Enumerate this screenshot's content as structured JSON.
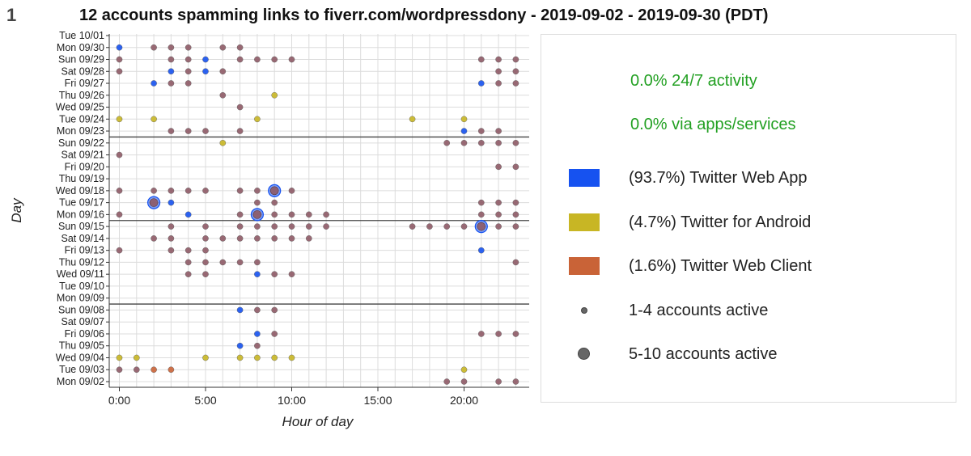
{
  "figure_number": "1",
  "legend": {
    "stats": [
      "0.0% 24/7 activity",
      "0.0% via apps/services"
    ],
    "sources": [
      {
        "label": "(93.7%) Twitter Web App",
        "color": "#1652f0"
      },
      {
        "label": "(4.7%) Twitter for Android",
        "color": "#c8b624"
      },
      {
        "label": "(1.6%) Twitter Web Client",
        "color": "#c96337"
      }
    ],
    "sizes": [
      {
        "label": "1-4 accounts active"
      },
      {
        "label": "5-10 accounts active"
      }
    ]
  },
  "chart_data": {
    "type": "scatter",
    "title": "12 accounts spamming links to fiverr.com/wordpressdony - 2019-09-02 - 2019-09-30 (PDT)",
    "xlabel": "Hour of day",
    "ylabel": "Day",
    "xlim": [
      -0.6,
      23.6
    ],
    "xticks": [
      0,
      5,
      10,
      15,
      20
    ],
    "xtick_labels": [
      "0:00",
      "5:00",
      "10:00",
      "15:00",
      "20:00"
    ],
    "days": [
      "Mon 09/02",
      "Tue 09/03",
      "Wed 09/04",
      "Thu 09/05",
      "Fri 09/06",
      "Sat 09/07",
      "Sun 09/08",
      "Mon 09/09",
      "Tue 09/10",
      "Wed 09/11",
      "Thu 09/12",
      "Fri 09/13",
      "Sat 09/14",
      "Sun 09/15",
      "Mon 09/16",
      "Tue 09/17",
      "Wed 09/18",
      "Thu 09/19",
      "Fri 09/20",
      "Sat 09/21",
      "Sun 09/22",
      "Mon 09/23",
      "Tue 09/24",
      "Wed 09/25",
      "Thu 09/26",
      "Fri 09/27",
      "Sat 09/28",
      "Sun 09/29",
      "Mon 09/30",
      "Tue 10/01"
    ],
    "week_separators_after": [
      "Sun 09/08",
      "Sun 09/15",
      "Sun 09/22"
    ],
    "colors": {
      "web_app": "#1652f0",
      "android": "#c8b624",
      "web_client": "#c96337",
      "mixed": "#8e5a66"
    },
    "points": [
      {
        "day": "Mon 09/30",
        "hours": [
          [
            0,
            "web_app",
            "s"
          ],
          [
            2,
            "mixed",
            "s"
          ],
          [
            3,
            "mixed",
            "s"
          ],
          [
            4,
            "mixed",
            "s"
          ],
          [
            6,
            "mixed",
            "s"
          ],
          [
            7,
            "mixed",
            "s"
          ]
        ]
      },
      {
        "day": "Sun 09/29",
        "hours": [
          [
            0,
            "mixed",
            "s"
          ],
          [
            3,
            "mixed",
            "s"
          ],
          [
            4,
            "mixed",
            "s"
          ],
          [
            5,
            "web_app",
            "s"
          ],
          [
            7,
            "mixed",
            "s"
          ],
          [
            8,
            "mixed",
            "s"
          ],
          [
            9,
            "mixed",
            "s"
          ],
          [
            10,
            "mixed",
            "s"
          ],
          [
            21,
            "mixed",
            "s"
          ],
          [
            22,
            "mixed",
            "s"
          ],
          [
            23,
            "mixed",
            "s"
          ]
        ]
      },
      {
        "day": "Sat 09/28",
        "hours": [
          [
            0,
            "mixed",
            "s"
          ],
          [
            3,
            "web_app",
            "s"
          ],
          [
            4,
            "mixed",
            "s"
          ],
          [
            5,
            "web_app",
            "s"
          ],
          [
            6,
            "mixed",
            "s"
          ],
          [
            22,
            "mixed",
            "s"
          ],
          [
            23,
            "mixed",
            "s"
          ]
        ]
      },
      {
        "day": "Fri 09/27",
        "hours": [
          [
            2,
            "web_app",
            "s"
          ],
          [
            3,
            "mixed",
            "s"
          ],
          [
            4,
            "mixed",
            "s"
          ],
          [
            21,
            "web_app",
            "s"
          ],
          [
            22,
            "mixed",
            "s"
          ],
          [
            23,
            "mixed",
            "s"
          ]
        ]
      },
      {
        "day": "Thu 09/26",
        "hours": [
          [
            6,
            "mixed",
            "s"
          ],
          [
            9,
            "android",
            "s"
          ]
        ]
      },
      {
        "day": "Wed 09/25",
        "hours": [
          [
            7,
            "mixed",
            "s"
          ]
        ]
      },
      {
        "day": "Tue 09/24",
        "hours": [
          [
            0,
            "android",
            "s"
          ],
          [
            2,
            "android",
            "s"
          ],
          [
            8,
            "android",
            "s"
          ],
          [
            17,
            "android",
            "s"
          ],
          [
            20,
            "android",
            "s"
          ]
        ]
      },
      {
        "day": "Mon 09/23",
        "hours": [
          [
            3,
            "mixed",
            "s"
          ],
          [
            4,
            "mixed",
            "s"
          ],
          [
            5,
            "mixed",
            "s"
          ],
          [
            7,
            "mixed",
            "s"
          ],
          [
            20,
            "web_app",
            "s"
          ],
          [
            21,
            "mixed",
            "s"
          ],
          [
            22,
            "mixed",
            "s"
          ]
        ]
      },
      {
        "day": "Sun 09/22",
        "hours": [
          [
            6,
            "android",
            "s"
          ],
          [
            19,
            "mixed",
            "s"
          ],
          [
            20,
            "mixed",
            "s"
          ],
          [
            21,
            "mixed",
            "s"
          ],
          [
            22,
            "mixed",
            "s"
          ],
          [
            23,
            "mixed",
            "s"
          ]
        ]
      },
      {
        "day": "Sat 09/21",
        "hours": [
          [
            0,
            "mixed",
            "s"
          ]
        ]
      },
      {
        "day": "Fri 09/20",
        "hours": [
          [
            22,
            "mixed",
            "s"
          ],
          [
            23,
            "mixed",
            "s"
          ]
        ]
      },
      {
        "day": "Wed 09/18",
        "hours": [
          [
            0,
            "mixed",
            "s"
          ],
          [
            2,
            "mixed",
            "s"
          ],
          [
            3,
            "mixed",
            "s"
          ],
          [
            4,
            "mixed",
            "s"
          ],
          [
            5,
            "mixed",
            "s"
          ],
          [
            7,
            "mixed",
            "s"
          ],
          [
            8,
            "mixed",
            "s"
          ],
          [
            9,
            "mixed",
            "l"
          ],
          [
            10,
            "mixed",
            "s"
          ]
        ]
      },
      {
        "day": "Tue 09/17",
        "hours": [
          [
            2,
            "mixed",
            "l"
          ],
          [
            3,
            "web_app",
            "s"
          ],
          [
            8,
            "mixed",
            "s"
          ],
          [
            9,
            "mixed",
            "s"
          ],
          [
            21,
            "mixed",
            "s"
          ],
          [
            22,
            "mixed",
            "s"
          ],
          [
            23,
            "mixed",
            "s"
          ]
        ]
      },
      {
        "day": "Mon 09/16",
        "hours": [
          [
            0,
            "mixed",
            "s"
          ],
          [
            4,
            "web_app",
            "s"
          ],
          [
            7,
            "mixed",
            "s"
          ],
          [
            8,
            "mixed",
            "l"
          ],
          [
            9,
            "mixed",
            "s"
          ],
          [
            10,
            "mixed",
            "s"
          ],
          [
            11,
            "mixed",
            "s"
          ],
          [
            12,
            "mixed",
            "s"
          ],
          [
            21,
            "mixed",
            "s"
          ],
          [
            22,
            "mixed",
            "s"
          ],
          [
            23,
            "mixed",
            "s"
          ]
        ]
      },
      {
        "day": "Sun 09/15",
        "hours": [
          [
            3,
            "mixed",
            "s"
          ],
          [
            5,
            "mixed",
            "s"
          ],
          [
            7,
            "mixed",
            "s"
          ],
          [
            8,
            "mixed",
            "s"
          ],
          [
            9,
            "mixed",
            "s"
          ],
          [
            10,
            "mixed",
            "s"
          ],
          [
            11,
            "mixed",
            "s"
          ],
          [
            12,
            "mixed",
            "s"
          ],
          [
            17,
            "mixed",
            "s"
          ],
          [
            18,
            "mixed",
            "s"
          ],
          [
            19,
            "mixed",
            "s"
          ],
          [
            20,
            "mixed",
            "s"
          ],
          [
            21,
            "mixed",
            "l"
          ],
          [
            22,
            "mixed",
            "s"
          ],
          [
            23,
            "mixed",
            "s"
          ]
        ]
      },
      {
        "day": "Sat 09/14",
        "hours": [
          [
            2,
            "mixed",
            "s"
          ],
          [
            3,
            "mixed",
            "s"
          ],
          [
            5,
            "mixed",
            "s"
          ],
          [
            6,
            "mixed",
            "s"
          ],
          [
            7,
            "mixed",
            "s"
          ],
          [
            8,
            "mixed",
            "s"
          ],
          [
            9,
            "mixed",
            "s"
          ],
          [
            10,
            "mixed",
            "s"
          ],
          [
            11,
            "mixed",
            "s"
          ]
        ]
      },
      {
        "day": "Fri 09/13",
        "hours": [
          [
            0,
            "mixed",
            "s"
          ],
          [
            3,
            "mixed",
            "s"
          ],
          [
            4,
            "mixed",
            "s"
          ],
          [
            5,
            "mixed",
            "s"
          ],
          [
            21,
            "web_app",
            "s"
          ]
        ]
      },
      {
        "day": "Thu 09/12",
        "hours": [
          [
            4,
            "mixed",
            "s"
          ],
          [
            5,
            "mixed",
            "s"
          ],
          [
            6,
            "mixed",
            "s"
          ],
          [
            7,
            "mixed",
            "s"
          ],
          [
            8,
            "mixed",
            "s"
          ],
          [
            23,
            "mixed",
            "s"
          ]
        ]
      },
      {
        "day": "Wed 09/11",
        "hours": [
          [
            4,
            "mixed",
            "s"
          ],
          [
            5,
            "mixed",
            "s"
          ],
          [
            8,
            "web_app",
            "s"
          ],
          [
            9,
            "mixed",
            "s"
          ],
          [
            10,
            "mixed",
            "s"
          ]
        ]
      },
      {
        "day": "Sun 09/08",
        "hours": [
          [
            7,
            "web_app",
            "s"
          ],
          [
            8,
            "mixed",
            "s"
          ],
          [
            9,
            "mixed",
            "s"
          ]
        ]
      },
      {
        "day": "Fri 09/06",
        "hours": [
          [
            8,
            "web_app",
            "s"
          ],
          [
            9,
            "mixed",
            "s"
          ],
          [
            21,
            "mixed",
            "s"
          ],
          [
            22,
            "mixed",
            "s"
          ],
          [
            23,
            "mixed",
            "s"
          ]
        ]
      },
      {
        "day": "Thu 09/05",
        "hours": [
          [
            7,
            "web_app",
            "s"
          ],
          [
            8,
            "mixed",
            "s"
          ]
        ]
      },
      {
        "day": "Wed 09/04",
        "hours": [
          [
            0,
            "android",
            "s"
          ],
          [
            1,
            "android",
            "s"
          ],
          [
            5,
            "android",
            "s"
          ],
          [
            7,
            "android",
            "s"
          ],
          [
            8,
            "android",
            "s"
          ],
          [
            9,
            "android",
            "s"
          ],
          [
            10,
            "android",
            "s"
          ]
        ]
      },
      {
        "day": "Tue 09/03",
        "hours": [
          [
            0,
            "mixed",
            "s"
          ],
          [
            1,
            "mixed",
            "s"
          ],
          [
            2,
            "web_client",
            "s"
          ],
          [
            3,
            "web_client",
            "s"
          ],
          [
            20,
            "android",
            "s"
          ]
        ]
      },
      {
        "day": "Mon 09/02",
        "hours": [
          [
            19,
            "mixed",
            "s"
          ],
          [
            20,
            "mixed",
            "s"
          ],
          [
            22,
            "mixed",
            "s"
          ],
          [
            23,
            "mixed",
            "s"
          ]
        ]
      }
    ]
  }
}
